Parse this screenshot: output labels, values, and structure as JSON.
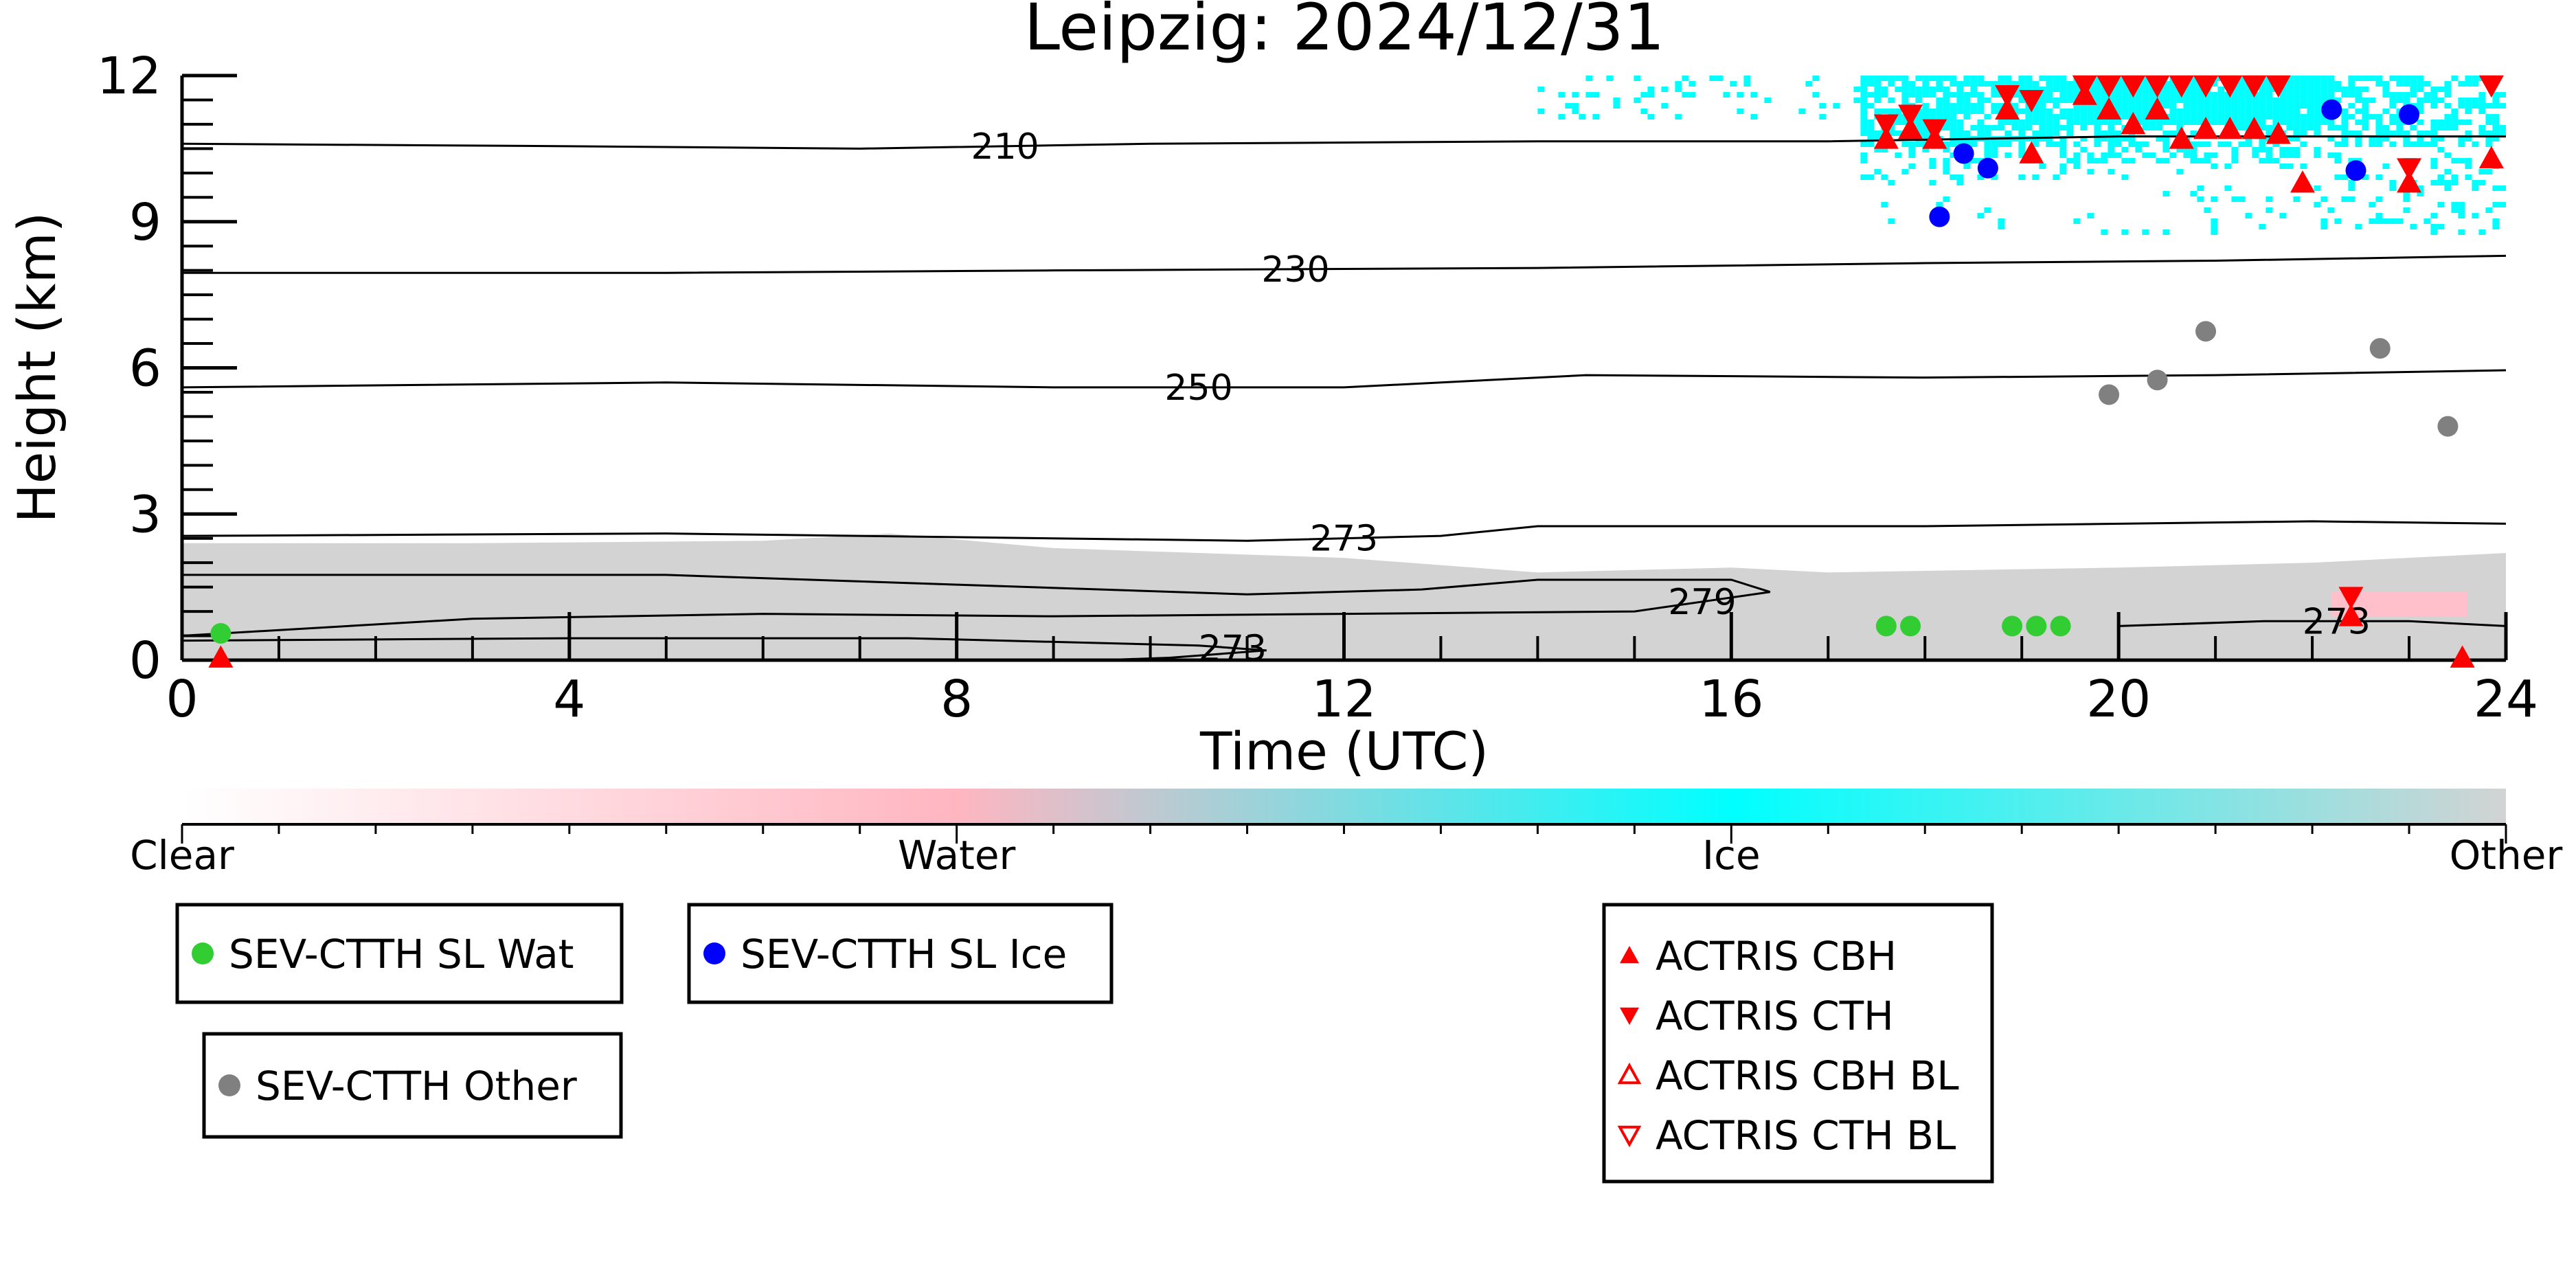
{
  "chart_data": {
    "type": "scatter",
    "title": "Leipzig: 2024/12/31",
    "xlabel": "Time (UTC)",
    "ylabel": "Height (km)",
    "xlim": [
      0,
      24
    ],
    "ylim": [
      0,
      12
    ],
    "x_ticks": [
      "0",
      "4",
      "8",
      "12",
      "16",
      "20",
      "24"
    ],
    "y_ticks": [
      "0",
      "3",
      "6",
      "9",
      "12"
    ],
    "grid": false,
    "background_fields": {
      "low_cloud_other": {
        "color": "#d3d3d3",
        "x_range": [
          0,
          24
        ],
        "top_km": [
          [
            0,
            2.4
          ],
          [
            3,
            2.4
          ],
          [
            6,
            2.45
          ],
          [
            7.3,
            2.6
          ],
          [
            9,
            2.3
          ],
          [
            12,
            2.1
          ],
          [
            14,
            1.8
          ],
          [
            16,
            1.9
          ],
          [
            17,
            1.8
          ],
          [
            20,
            1.9
          ],
          [
            22,
            2.0
          ],
          [
            24,
            2.2
          ]
        ]
      },
      "ice_cloud": {
        "color": "#00ffff",
        "extent": [
          [
            14,
            24
          ],
          [
            8.8,
            12
          ]
        ]
      },
      "water_cloud": {
        "color": "#ffc0cb",
        "extent": [
          [
            22.2,
            23.6
          ],
          [
            0.9,
            1.4
          ]
        ]
      }
    },
    "contours": [
      {
        "label": "210",
        "points": [
          [
            0,
            10.6
          ],
          [
            4,
            10.55
          ],
          [
            7,
            10.5
          ],
          [
            10,
            10.6
          ],
          [
            14,
            10.65
          ],
          [
            17,
            10.65
          ],
          [
            20,
            10.75
          ],
          [
            24,
            10.75
          ]
        ]
      },
      {
        "label": "230",
        "points": [
          [
            0,
            7.95
          ],
          [
            5,
            7.95
          ],
          [
            9,
            8.0
          ],
          [
            14,
            8.05
          ],
          [
            18,
            8.15
          ],
          [
            21,
            8.2
          ],
          [
            24,
            8.3
          ]
        ]
      },
      {
        "label": "250",
        "points": [
          [
            0,
            5.6
          ],
          [
            5,
            5.7
          ],
          [
            9,
            5.6
          ],
          [
            12,
            5.6
          ],
          [
            14.5,
            5.85
          ],
          [
            18,
            5.8
          ],
          [
            21,
            5.85
          ],
          [
            24,
            5.95
          ]
        ]
      },
      {
        "label": "273",
        "points": [
          [
            0,
            2.55
          ],
          [
            5,
            2.6
          ],
          [
            9,
            2.5
          ],
          [
            11,
            2.45
          ],
          [
            13,
            2.55
          ],
          [
            14,
            2.75
          ],
          [
            18,
            2.75
          ],
          [
            22,
            2.85
          ],
          [
            24,
            2.8
          ]
        ]
      },
      {
        "label": "279",
        "points": [
          [
            0,
            1.75
          ],
          [
            5,
            1.75
          ],
          [
            8,
            1.55
          ],
          [
            11,
            1.35
          ],
          [
            12.8,
            1.45
          ],
          [
            14,
            1.65
          ],
          [
            16,
            1.65
          ],
          [
            16.4,
            1.4
          ],
          [
            15,
            1.0
          ],
          [
            12,
            0.95
          ],
          [
            9,
            0.9
          ],
          [
            6,
            0.95
          ],
          [
            3,
            0.85
          ],
          [
            0,
            0.5
          ]
        ]
      },
      {
        "label": "273",
        "points": [
          [
            0,
            0.4
          ],
          [
            4,
            0.45
          ],
          [
            7.5,
            0.45
          ],
          [
            10.5,
            0.3
          ],
          [
            11.2,
            0.2
          ],
          [
            10.2,
            0.05
          ],
          [
            9.5,
            0.0
          ]
        ]
      },
      {
        "label": "273",
        "points": [
          [
            20,
            0.7
          ],
          [
            21.5,
            0.8
          ],
          [
            23,
            0.8
          ],
          [
            24,
            0.7
          ]
        ]
      }
    ],
    "colorbar": {
      "ticks": [
        "Clear",
        "Water",
        "Ice",
        "Other"
      ],
      "colors": [
        "#ffffff",
        "#ffb6c1",
        "#00ffff",
        "#d3d3d3"
      ]
    },
    "series": [
      {
        "name": "SEV-CTTH SL Wat",
        "color": "#32cd32",
        "marker": "circle",
        "x": [
          0.4,
          17.6,
          17.85,
          18.9,
          19.15,
          19.4
        ],
        "y": [
          0.55,
          0.7,
          0.7,
          0.7,
          0.7,
          0.7
        ]
      },
      {
        "name": "SEV-CTTH SL Ice",
        "color": "#0000ff",
        "marker": "circle",
        "x": [
          18.15,
          18.4,
          18.65,
          22.2,
          22.45,
          23.0
        ],
        "y": [
          9.1,
          10.4,
          10.1,
          11.3,
          10.05,
          11.2
        ]
      },
      {
        "name": "SEV-CTTH Other",
        "color": "#808080",
        "marker": "circle",
        "x": [
          19.9,
          20.4,
          20.9,
          22.7,
          23.4
        ],
        "y": [
          5.45,
          5.75,
          6.75,
          6.4,
          4.8
        ]
      },
      {
        "name": "ACTRIS CBH",
        "color": "#ff0000",
        "marker": "triangle-up",
        "x": [
          0.4,
          17.6,
          17.85,
          18.1,
          18.85,
          19.1,
          19.65,
          19.9,
          20.15,
          20.4,
          20.65,
          20.9,
          21.15,
          21.4,
          21.65,
          21.9,
          22.4,
          23.0,
          23.55,
          23.85
        ],
        "y": [
          0.05,
          10.7,
          10.9,
          10.7,
          11.3,
          10.4,
          11.6,
          11.3,
          11.0,
          11.3,
          10.7,
          10.9,
          10.9,
          10.9,
          10.8,
          9.8,
          0.9,
          9.8,
          0.05,
          10.3
        ]
      },
      {
        "name": "ACTRIS CTH",
        "color": "#ff0000",
        "marker": "triangle-down",
        "x": [
          17.6,
          17.85,
          18.1,
          18.85,
          19.1,
          19.65,
          19.9,
          20.15,
          20.4,
          20.65,
          20.9,
          21.15,
          21.4,
          21.65,
          22.4,
          23.0,
          23.85
        ],
        "y": [
          11.0,
          11.2,
          10.9,
          11.6,
          11.5,
          11.8,
          11.8,
          11.8,
          11.8,
          11.8,
          11.8,
          11.8,
          11.8,
          11.8,
          1.3,
          10.1,
          11.8
        ]
      },
      {
        "name": "ACTRIS CBH BL",
        "color": "#ff0000",
        "marker": "triangle-up-open",
        "x": [],
        "y": []
      },
      {
        "name": "ACTRIS CTH BL",
        "color": "#ff0000",
        "marker": "triangle-down-open",
        "x": [],
        "y": []
      }
    ]
  }
}
